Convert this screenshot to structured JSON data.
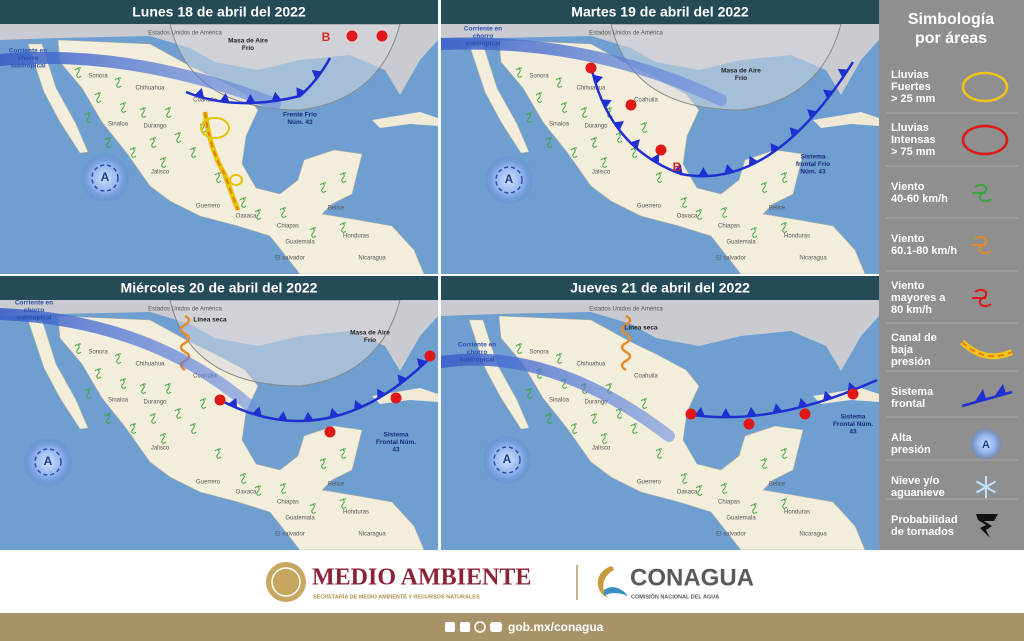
{
  "panels": [
    {
      "title": "Lunes 18 de abril del 2022",
      "annotations": [
        "Corriente en chorro subtropical",
        "Masa de Aire Frío",
        "Frente Frío Núm. 43",
        "B",
        "A"
      ]
    },
    {
      "title": "Martes 19 de abril del 2022",
      "annotations": [
        "Corriente en chorro subtropical",
        "Masa de Aire Frío",
        "Sistema frontal Frío Núm. 43",
        "B",
        "A"
      ]
    },
    {
      "title": "Miércoles 20 de abril del 2022",
      "annotations": [
        "Corriente en chorro subtropical",
        "Línea seca",
        "Masa de Aire Frío",
        "Sistema Frontal Núm. 43",
        "A"
      ]
    },
    {
      "title": "Jueves 21 de abril del 2022",
      "annotations": [
        "Corriente en chorro subtropical",
        "Línea seca",
        "Sistema Frontal Núm. 43",
        "A"
      ]
    }
  ],
  "map_labels": [
    "Estados Unidos de América",
    "Sonora",
    "Chihuahua",
    "Coahuila",
    "Durango",
    "Sinaloa",
    "Jalisco",
    "Guerrero",
    "Oaxaca",
    "Chiapas",
    "Belice",
    "Guatemala",
    "Honduras",
    "El salvador",
    "Nicaragua"
  ],
  "legend": {
    "title": [
      "Simbología",
      "por áreas"
    ],
    "items": [
      [
        "Lluvias",
        "Fuertes",
        "> 25 mm"
      ],
      [
        "Lluvias",
        "Intensas",
        "> 75 mm"
      ],
      [
        "Viento",
        "40-60 km/h"
      ],
      [
        "Viento",
        "60.1-80 km/h"
      ],
      [
        "Viento",
        "mayores a",
        "80 km/h"
      ],
      [
        "Canal de",
        "baja",
        "presión"
      ],
      [
        "Sistema",
        "frontal"
      ],
      [
        "Alta",
        "presión"
      ],
      [
        "Nieve y/o",
        "aguanieve"
      ],
      [
        "Probabilidad",
        "de tornados"
      ]
    ]
  },
  "footer": {
    "brand1": "MEDIO AMBIENTE",
    "brand1_sub": "SECRETARÍA DE MEDIO AMBIENTE Y RECURSOS NATURALES",
    "brand2": "CONAGUA",
    "brand2_sub": "COMISIÓN NACIONAL DEL AGUA",
    "url": "gob.mx/conagua"
  }
}
